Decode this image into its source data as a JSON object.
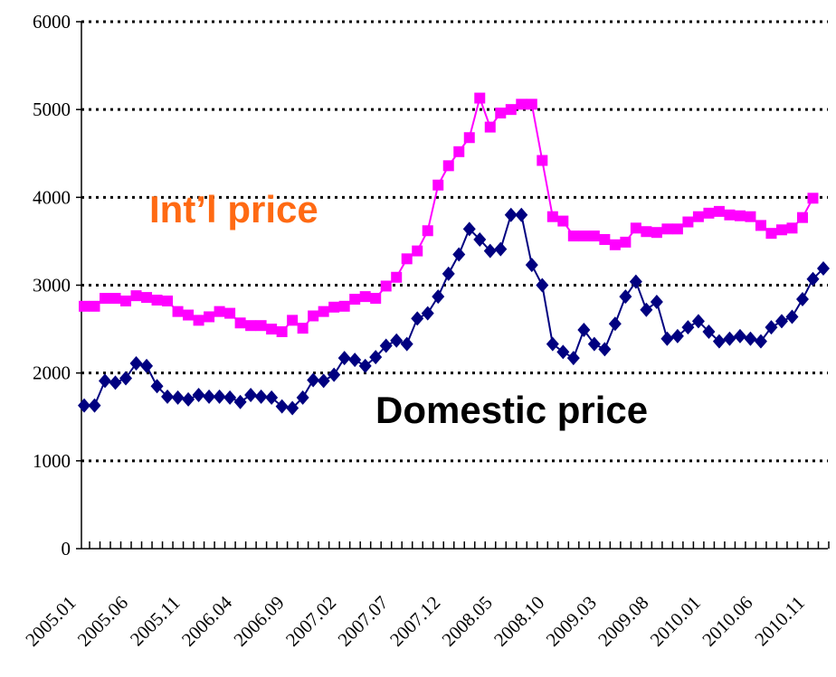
{
  "chart_data": {
    "type": "line",
    "categories": [
      "2005.01",
      null,
      null,
      null,
      null,
      "2005.06",
      null,
      null,
      null,
      null,
      "2005.11",
      null,
      null,
      null,
      null,
      "2006.04",
      null,
      null,
      null,
      null,
      "2006.09",
      null,
      null,
      null,
      null,
      "2007.02",
      null,
      null,
      null,
      null,
      "2007.07",
      null,
      null,
      null,
      null,
      "2007.12",
      null,
      null,
      null,
      null,
      "2008.05",
      null,
      null,
      null,
      null,
      "2008.10",
      null,
      null,
      null,
      null,
      "2009.03",
      null,
      null,
      null,
      null,
      "2009.08",
      null,
      null,
      null,
      null,
      "2010.01",
      null,
      null,
      null,
      null,
      "2010.06",
      null,
      null,
      null,
      null,
      "2010.11",
      null
    ],
    "series": [
      {
        "name": "Int’l price",
        "color": "#ff00ff",
        "label_color": "#ff6a13",
        "marker": "square",
        "values": [
          2760,
          2760,
          2850,
          2850,
          2820,
          2880,
          2860,
          2830,
          2820,
          2700,
          2660,
          2600,
          2640,
          2700,
          2680,
          2570,
          2540,
          2540,
          2500,
          2470,
          2600,
          2510,
          2650,
          2700,
          2750,
          2760,
          2840,
          2870,
          2850,
          2990,
          3090,
          3300,
          3390,
          3620,
          4140,
          4360,
          4520,
          4680,
          5130,
          4800,
          4960,
          5000,
          5060,
          5060,
          4420,
          3780,
          3730,
          3560,
          3560,
          3560,
          3520,
          3460,
          3490,
          3650,
          3610,
          3600,
          3640,
          3640,
          3720,
          3780,
          3820,
          3840,
          3800,
          3790,
          3780,
          3680,
          3590,
          3630,
          3650,
          3770,
          3990,
          null
        ]
      },
      {
        "name": "Domestic price",
        "color": "#000080",
        "label_color": "#000000",
        "marker": "diamond",
        "values": [
          1630,
          1630,
          1910,
          1890,
          1940,
          2110,
          2080,
          1850,
          1730,
          1720,
          1700,
          1750,
          1730,
          1730,
          1720,
          1670,
          1750,
          1730,
          1720,
          1620,
          1600,
          1720,
          1920,
          1910,
          1980,
          2170,
          2150,
          2080,
          2180,
          2310,
          2370,
          2330,
          2620,
          2680,
          2870,
          3130,
          3350,
          3640,
          3520,
          3390,
          3410,
          3800,
          3800,
          3230,
          3000,
          2330,
          2240,
          2170,
          2490,
          2330,
          2270,
          2560,
          2870,
          3040,
          2720,
          2810,
          2390,
          2420,
          2520,
          2590,
          2470,
          2360,
          2390,
          2420,
          2390,
          2360,
          2520,
          2590,
          2640,
          2840,
          3070,
          3190
        ]
      }
    ],
    "ylim": [
      0,
      6000
    ],
    "yticks": [
      0,
      1000,
      2000,
      3000,
      4000,
      5000,
      6000
    ],
    "grid": true
  }
}
